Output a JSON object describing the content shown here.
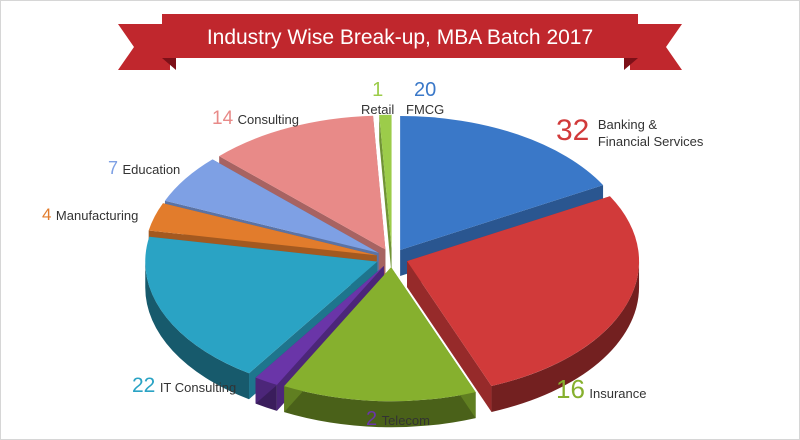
{
  "chart_data": {
    "type": "pie",
    "title": "Industry Wise Break-up, MBA Batch 2017",
    "slices": [
      {
        "label": "FMCG",
        "value": 20,
        "color": "#3a78c8"
      },
      {
        "label": "Banking & Financial Services",
        "value": 32,
        "color": "#d13a3a"
      },
      {
        "label": "Insurance",
        "value": 16,
        "color": "#86b02e"
      },
      {
        "label": "Telecom",
        "value": 2,
        "color": "#6a35a8"
      },
      {
        "label": "IT Consulting",
        "value": 22,
        "color": "#2aa3c4"
      },
      {
        "label": "Manufacturing",
        "value": 4,
        "color": "#e27c2c"
      },
      {
        "label": "Education",
        "value": 7,
        "color": "#7ea0e4"
      },
      {
        "label": "Consulting",
        "value": 14,
        "color": "#e88a88"
      },
      {
        "label": "Retail",
        "value": 1,
        "color": "#9ccc4a"
      }
    ],
    "label_parts": {
      "Banking & Financial Services": [
        "Banking &",
        "Financial Services"
      ]
    }
  },
  "colors": {
    "banner": "#c0272d",
    "banner_dark": "#7d1018"
  }
}
